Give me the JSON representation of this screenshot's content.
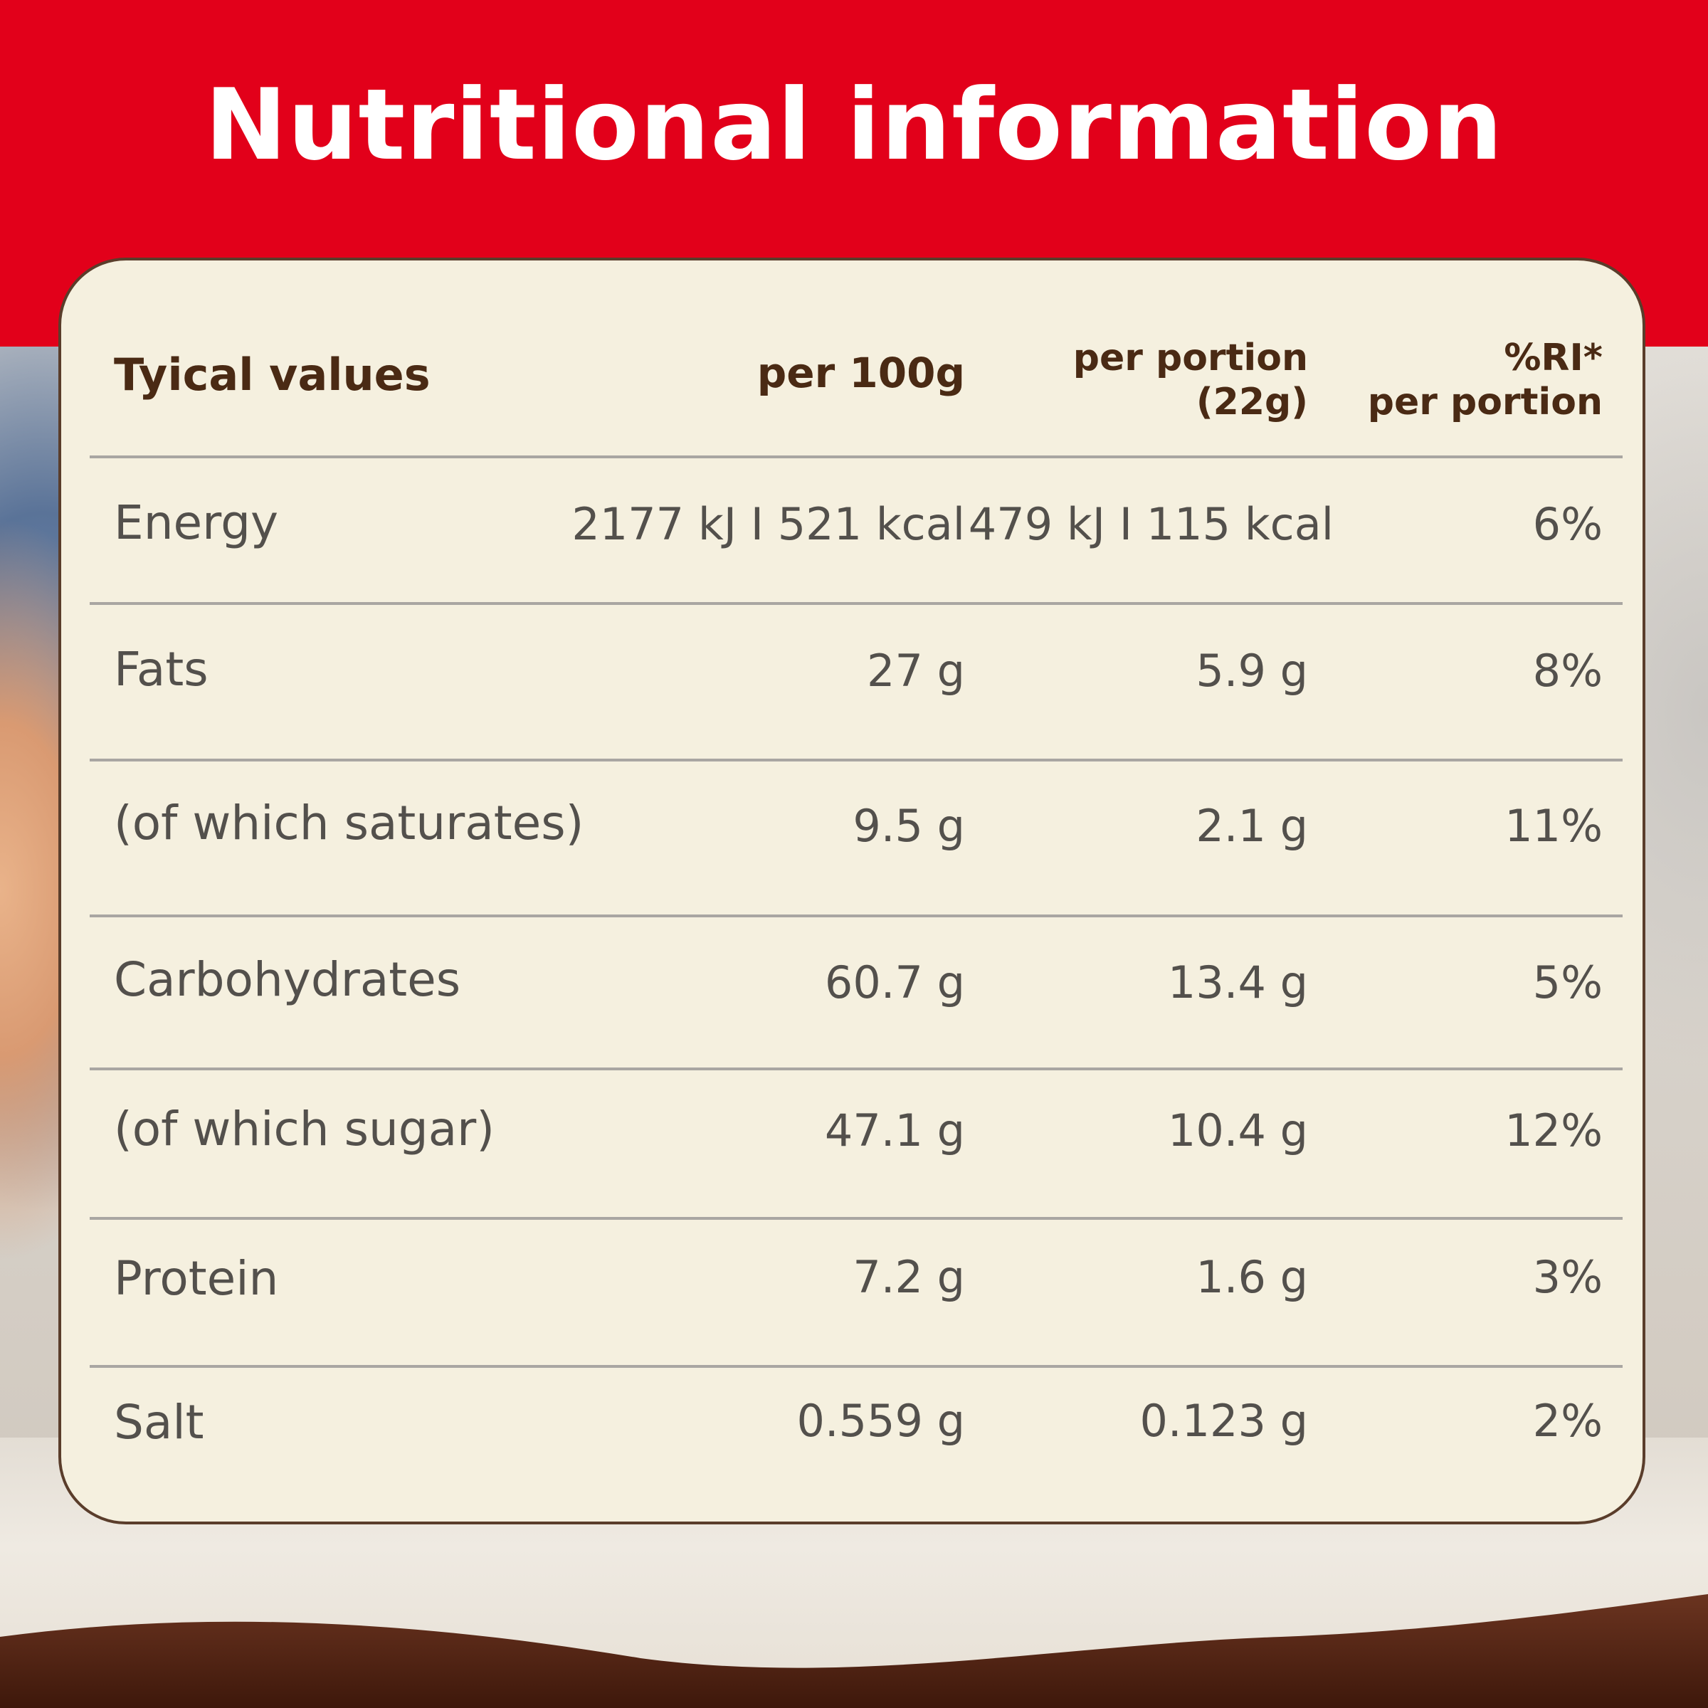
{
  "title": "Nutritional information",
  "table": {
    "headers": {
      "label": "Tyical values",
      "per_100g": "per 100g",
      "per_portion_line1": "per portion",
      "per_portion_line2": "(22g)",
      "ri_line1": "%RI*",
      "ri_line2": "per portion"
    },
    "rows": [
      {
        "label": "Energy",
        "per_100g": "2177 kJ I 521 kcal",
        "per_portion": "479 kJ I 115 kcal",
        "ri": "6%"
      },
      {
        "label": "Fats",
        "per_100g": "27 g",
        "per_portion": "5.9 g",
        "ri": "8%"
      },
      {
        "label": "(of which saturates)",
        "per_100g": "9.5 g",
        "per_portion": "2.1 g",
        "ri": "11%"
      },
      {
        "label": "Carbohydrates",
        "per_100g": "60.7 g",
        "per_portion": "13.4 g",
        "ri": "5%"
      },
      {
        "label": "(of which sugar)",
        "per_100g": "47.1 g",
        "per_portion": "10.4 g",
        "ri": "12%"
      },
      {
        "label": "Protein",
        "per_100g": "7.2 g",
        "per_portion": "1.6 g",
        "ri": "3%"
      },
      {
        "label": "Salt",
        "per_100g": "0.559 g",
        "per_portion": "0.123 g",
        "ri": "2%"
      }
    ]
  },
  "colors": {
    "brand_red": "#e2001a",
    "card_bg": "#f5f0df",
    "heading_brown": "#4a2a14",
    "chocolate": "#4a1f10"
  }
}
